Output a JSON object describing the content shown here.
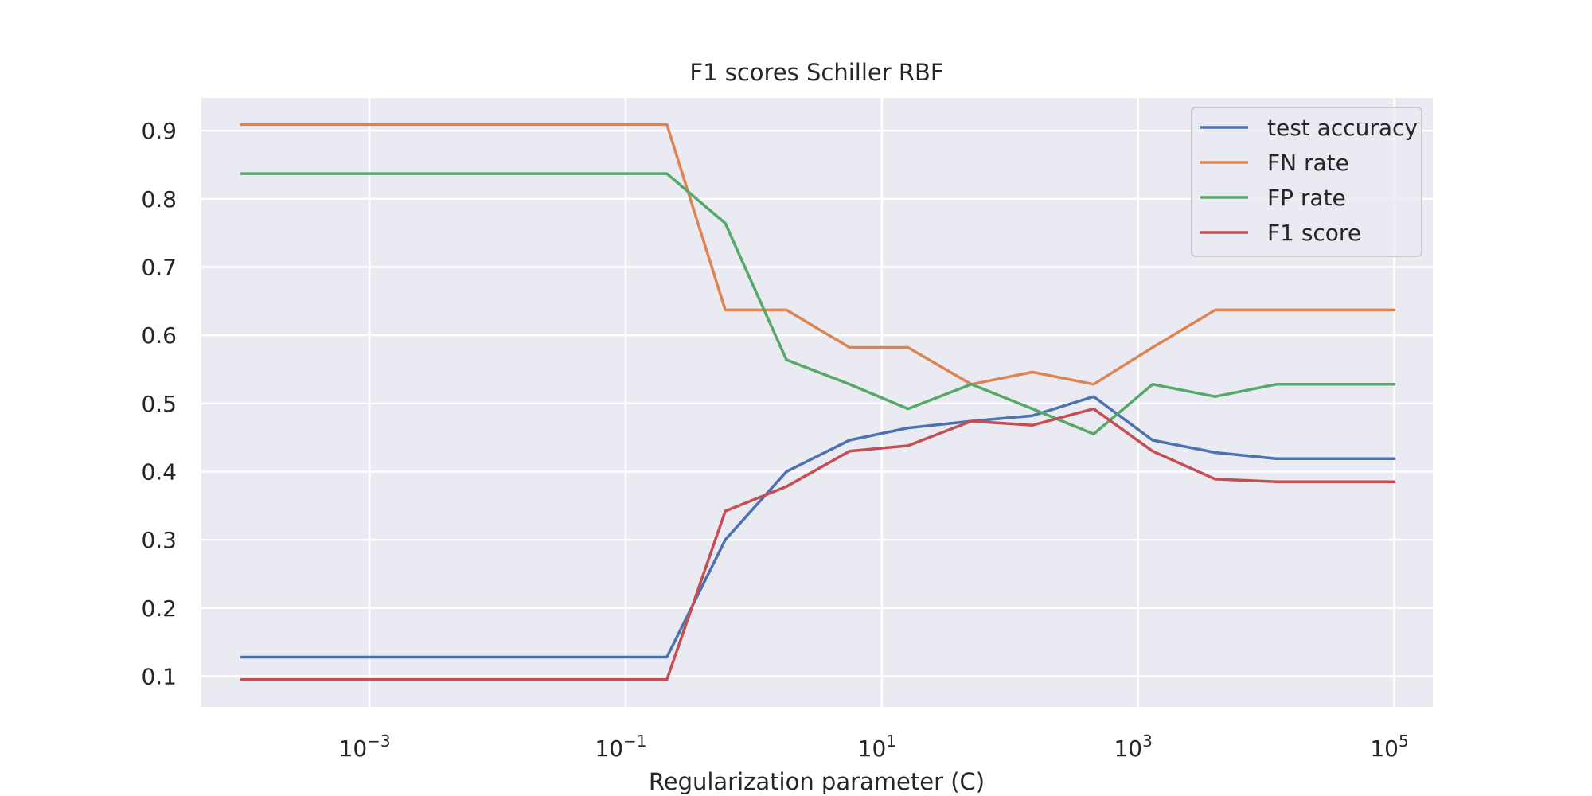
{
  "chart_data": {
    "type": "line",
    "title": "F1 scores Schiller RBF",
    "xlabel": "Regularization parameter (C)",
    "ylabel": "",
    "x_scale": "log",
    "xlim": [
      4.88e-05,
      200000
    ],
    "ylim": [
      0.055,
      0.948
    ],
    "x_ticks": [
      {
        "value": 0.001,
        "base": "10",
        "exp": "−3"
      },
      {
        "value": 0.1,
        "base": "10",
        "exp": "−1"
      },
      {
        "value": 10,
        "base": "10",
        "exp": "1"
      },
      {
        "value": 1000,
        "base": "10",
        "exp": "3"
      },
      {
        "value": 100000,
        "base": "10",
        "exp": "5"
      }
    ],
    "y_ticks": [
      0.1,
      0.2,
      0.3,
      0.4,
      0.5,
      0.6,
      0.7,
      0.8,
      0.9
    ],
    "grid": true,
    "legend_position": "top-right",
    "x": [
      0.0001,
      0.00036,
      0.0013,
      0.0046,
      0.016,
      0.06,
      0.21,
      0.6,
      1.8,
      5.6,
      16,
      50,
      150,
      450,
      1300,
      4000,
      12000,
      100000
    ],
    "series": [
      {
        "name": "test accuracy",
        "color": "#4c72b0",
        "values": [
          0.128,
          0.128,
          0.128,
          0.128,
          0.128,
          0.128,
          0.128,
          0.3,
          0.4,
          0.446,
          0.464,
          0.474,
          0.482,
          0.51,
          0.446,
          0.428,
          0.419,
          0.419
        ]
      },
      {
        "name": "FN rate",
        "color": "#dd8452",
        "values": [
          0.909,
          0.909,
          0.909,
          0.909,
          0.909,
          0.909,
          0.909,
          0.637,
          0.637,
          0.582,
          0.582,
          0.528,
          0.546,
          0.528,
          0.582,
          0.637,
          0.637,
          0.637
        ]
      },
      {
        "name": "FP rate",
        "color": "#55a868",
        "values": [
          0.837,
          0.837,
          0.837,
          0.837,
          0.837,
          0.837,
          0.837,
          0.764,
          0.564,
          0.528,
          0.492,
          0.528,
          0.492,
          0.455,
          0.528,
          0.51,
          0.528,
          0.528
        ]
      },
      {
        "name": "F1 score",
        "color": "#c44e52",
        "values": [
          0.095,
          0.095,
          0.095,
          0.095,
          0.095,
          0.095,
          0.095,
          0.342,
          0.378,
          0.43,
          0.438,
          0.474,
          0.468,
          0.492,
          0.43,
          0.389,
          0.385,
          0.385
        ]
      }
    ]
  },
  "style": {
    "plot_background": "#eaeaf2",
    "grid_color": "#ffffff",
    "legend_border": "#cccccc",
    "text_color": "#262626"
  }
}
